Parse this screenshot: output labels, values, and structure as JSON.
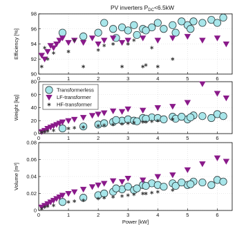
{
  "chart_data": [
    {
      "type": "scatter",
      "title": "PV inverters P",
      "title_subscript": "DC",
      "title_suffix": "<6.5kW",
      "ylabel": "Efficiency [%]",
      "xlabel": "",
      "xlim": [
        0,
        6.5
      ],
      "ylim": [
        90,
        98
      ],
      "xticks": [
        "0",
        "1",
        "2",
        "3",
        "4",
        "5",
        "6"
      ],
      "yticks": [
        "90",
        "92",
        "94",
        "96",
        "98"
      ],
      "grid": true,
      "series": [
        {
          "name": "Transformerless",
          "x": [
            2.0,
            2.5,
            2.8,
            3.0,
            3.2,
            3.5,
            3.8,
            4.0,
            4.2,
            4.5,
            5.0,
            5.2,
            5.5,
            5.8,
            6.0,
            6.2,
            2.2,
            3.3,
            4.6,
            5.1,
            0.8,
            1.5,
            2.6,
            3.6,
            4.8
          ],
          "y": [
            95.5,
            96.0,
            96.2,
            95.8,
            96.5,
            96.0,
            96.2,
            96.8,
            96.0,
            96.5,
            96.5,
            97.0,
            96.8,
            97.2,
            96.8,
            97.5,
            96.8,
            95.2,
            95.5,
            96.0,
            95.5,
            95.0,
            94.8,
            95.8,
            97.0
          ]
        },
        {
          "name": "LF-transformer",
          "x": [
            0.1,
            0.2,
            0.3,
            0.4,
            0.5,
            0.6,
            0.7,
            0.8,
            1.0,
            1.2,
            1.5,
            1.8,
            2.0,
            2.2,
            2.5,
            2.8,
            3.0,
            3.5,
            4.0,
            4.5,
            5.0,
            5.5,
            6.0,
            6.3
          ],
          "y": [
            92.5,
            92.0,
            93.0,
            93.8,
            93.5,
            94.0,
            94.5,
            94.8,
            94.2,
            94.5,
            94.2,
            94.8,
            94.0,
            94.5,
            94.8,
            94.2,
            94.5,
            94.8,
            94.5,
            94.8,
            95.0,
            94.5,
            94.8,
            94.0
          ]
        },
        {
          "name": "HF-transformer",
          "x": [
            0.1,
            0.2,
            0.3,
            0.5,
            1.0,
            1.5,
            2.0,
            2.5,
            3.0,
            3.5,
            4.0,
            4.5,
            1.2,
            2.2,
            3.2,
            3.8,
            2.8,
            3.6
          ],
          "y": [
            91.0,
            93.5,
            92.0,
            92.8,
            93.0,
            91.0,
            93.2,
            94.0,
            94.0,
            91.0,
            91.0,
            92.0,
            94.5,
            93.8,
            94.5,
            93.5,
            91.0,
            91.2
          ]
        }
      ]
    },
    {
      "type": "scatter",
      "title": "",
      "ylabel": "Weight [kg]",
      "xlabel": "",
      "xlim": [
        0,
        6.5
      ],
      "ylim": [
        0,
        80
      ],
      "xticks": [
        "0",
        "1",
        "2",
        "3",
        "4",
        "5",
        "6"
      ],
      "yticks": [
        "0",
        "20",
        "40",
        "60",
        "80"
      ],
      "grid": true,
      "legend": "top-left",
      "series": [
        {
          "name": "Transformerless",
          "x": [
            2.0,
            2.5,
            2.8,
            3.0,
            3.2,
            3.5,
            3.8,
            4.0,
            4.2,
            4.5,
            5.0,
            5.2,
            5.5,
            5.8,
            6.0,
            6.2,
            2.2,
            3.3,
            4.6,
            5.1,
            0.8,
            1.5,
            2.6,
            3.6,
            4.8
          ],
          "y": [
            14,
            18,
            20,
            22,
            20,
            24,
            25,
            24,
            22,
            26,
            22,
            28,
            27,
            24,
            30,
            27,
            16,
            19,
            23,
            25,
            8,
            11,
            21,
            23,
            26
          ]
        },
        {
          "name": "LF-transformer",
          "x": [
            0.1,
            0.2,
            0.3,
            0.4,
            0.5,
            0.6,
            0.7,
            0.8,
            1.0,
            1.2,
            1.5,
            1.8,
            2.0,
            2.2,
            2.5,
            2.8,
            3.0,
            3.5,
            4.0,
            4.5,
            5.0,
            5.5,
            6.0,
            6.3
          ],
          "y": [
            3,
            5,
            8,
            10,
            12,
            14,
            16,
            18,
            20,
            22,
            25,
            28,
            30,
            32,
            35,
            34,
            38,
            36,
            40,
            42,
            48,
            78,
            62,
            55
          ]
        },
        {
          "name": "HF-transformer",
          "x": [
            0.1,
            0.2,
            0.3,
            0.5,
            1.0,
            1.5,
            2.0,
            2.5,
            3.0,
            3.5,
            4.0,
            4.5,
            1.2,
            2.2,
            3.2,
            3.8,
            2.8,
            3.6
          ],
          "y": [
            2,
            3,
            4,
            5,
            8,
            10,
            12,
            14,
            16,
            18,
            20,
            22,
            9,
            13,
            17,
            19,
            15,
            18
          ]
        }
      ]
    },
    {
      "type": "scatter",
      "title": "",
      "ylabel": "Volume [m³]",
      "xlabel": "Power [kW]",
      "xlim": [
        0,
        6.5
      ],
      "ylim": [
        0,
        0.08
      ],
      "xticks": [
        "0",
        "1",
        "2",
        "3",
        "4",
        "5",
        "6"
      ],
      "yticks": [
        "0",
        "0.02",
        "0.04",
        "0.06",
        "0.08"
      ],
      "grid": true,
      "series": [
        {
          "name": "Transformerless",
          "x": [
            2.0,
            2.5,
            2.8,
            3.0,
            3.2,
            3.5,
            3.8,
            4.0,
            4.2,
            4.5,
            5.0,
            5.2,
            5.5,
            5.8,
            6.0,
            6.2,
            2.2,
            3.3,
            4.6,
            5.1,
            0.8,
            1.5,
            2.6,
            3.6,
            4.8
          ],
          "y": [
            0.018,
            0.022,
            0.025,
            0.028,
            0.024,
            0.03,
            0.032,
            0.03,
            0.028,
            0.032,
            0.03,
            0.034,
            0.033,
            0.03,
            0.036,
            0.034,
            0.02,
            0.026,
            0.029,
            0.031,
            0.01,
            0.015,
            0.026,
            0.029,
            0.033
          ]
        },
        {
          "name": "LF-transformer",
          "x": [
            0.1,
            0.2,
            0.3,
            0.4,
            0.5,
            0.6,
            0.7,
            0.8,
            1.0,
            1.2,
            1.5,
            1.8,
            2.0,
            2.2,
            2.5,
            2.8,
            3.0,
            3.5,
            4.0,
            4.5,
            5.0,
            5.5,
            6.0,
            6.3
          ],
          "y": [
            0.004,
            0.006,
            0.008,
            0.01,
            0.012,
            0.014,
            0.016,
            0.018,
            0.02,
            0.022,
            0.025,
            0.028,
            0.03,
            0.032,
            0.035,
            0.034,
            0.038,
            0.036,
            0.04,
            0.042,
            0.048,
            0.055,
            0.062,
            0.058
          ]
        },
        {
          "name": "HF-transformer",
          "x": [
            0.1,
            0.2,
            0.3,
            0.5,
            1.0,
            1.5,
            2.0,
            2.5,
            3.0,
            3.5,
            4.0,
            4.5,
            1.2,
            2.2,
            3.2,
            3.8,
            2.8,
            3.6
          ],
          "y": [
            0.002,
            0.004,
            0.005,
            0.006,
            0.01,
            0.012,
            0.014,
            0.016,
            0.018,
            0.02,
            0.022,
            0.024,
            0.011,
            0.015,
            0.019,
            0.021,
            0.017,
            0.02
          ]
        }
      ]
    }
  ],
  "styles": {
    "transformerless_fill": "#a8e6ea",
    "transformerless_stroke": "#2a3a3c",
    "lf_fill": "#8a1a8a",
    "hf_stroke": "#333333",
    "grid_color": "#d8d8d8",
    "axis_color": "#000000"
  },
  "markers": {
    "Transformerless": "circle",
    "LF-transformer": "triangle-down",
    "HF-transformer": "asterisk"
  }
}
